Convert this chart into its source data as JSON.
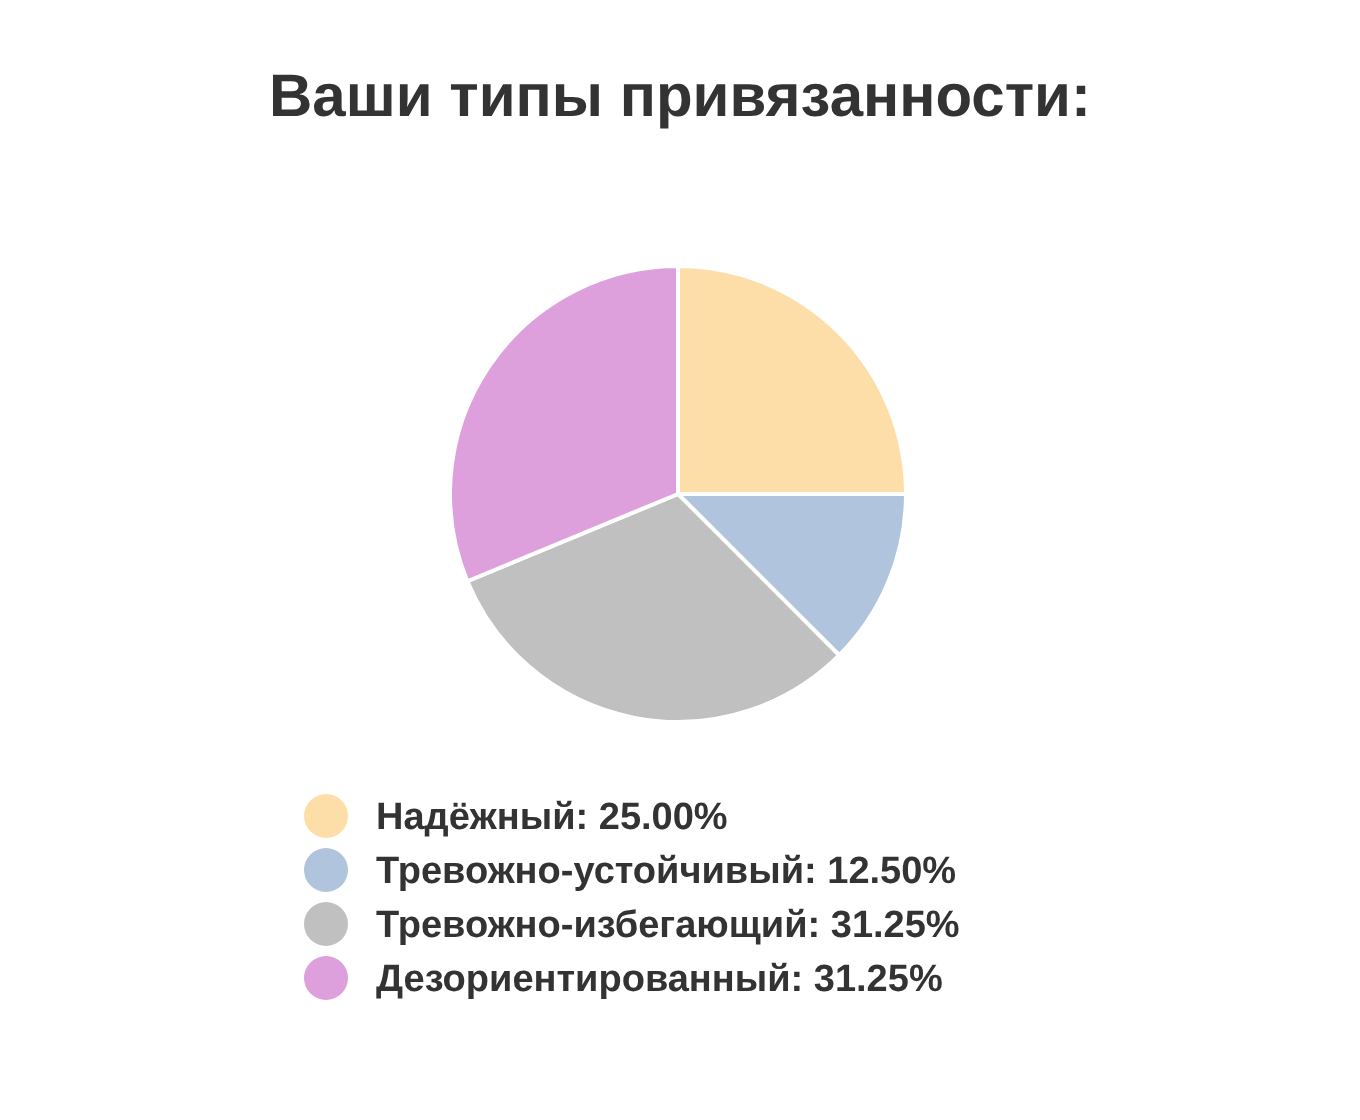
{
  "chart_data": {
    "type": "pie",
    "title": "Ваши типы привязанности:",
    "categories": [
      "Надёжный",
      "Тревожно-устойчивый",
      "Тревожно-избегающий",
      "Дезориентированный"
    ],
    "values": [
      25,
      12.5,
      31.25,
      31.25
    ],
    "value_labels": [
      "25.00%",
      "12.50%",
      "31.25%",
      "31.25%"
    ],
    "colors": [
      "#fddea9",
      "#b0c4de",
      "#c0c0c0",
      "#dda0dd"
    ],
    "legend": "bottom"
  }
}
